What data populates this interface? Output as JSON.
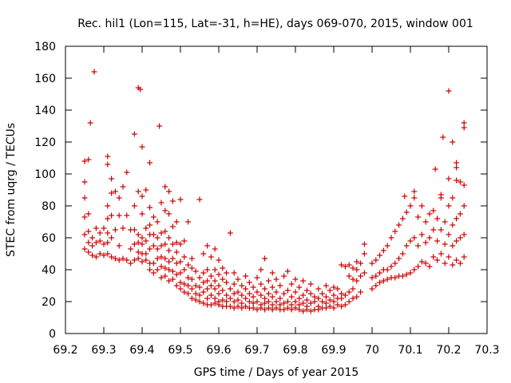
{
  "chart_data": {
    "type": "scatter",
    "title": "Rec. hil1 (Lon=115, Lat=-31, h=HE), days 069-070, 2015, window 001",
    "xlabel": "GPS time / Days of year 2015",
    "ylabel": "STEC from uqrg / TECUs",
    "xlim": [
      69.2,
      70.3
    ],
    "ylim": [
      0,
      180
    ],
    "xticks": [
      "69.2",
      "69.3",
      "69.4",
      "69.5",
      "69.6",
      "69.7",
      "69.8",
      "69.9",
      "70",
      "70.1",
      "70.2",
      "70.3"
    ],
    "yticks": [
      "0",
      "20",
      "40",
      "60",
      "80",
      "100",
      "120",
      "140",
      "160",
      "180"
    ],
    "grid": false,
    "marker": "+",
    "color": "#cc0000",
    "points": [
      [
        69.25,
        53
      ],
      [
        69.25,
        62
      ],
      [
        69.25,
        73
      ],
      [
        69.25,
        85
      ],
      [
        69.25,
        95
      ],
      [
        69.25,
        108
      ],
      [
        69.26,
        51
      ],
      [
        69.26,
        57
      ],
      [
        69.26,
        64
      ],
      [
        69.26,
        75
      ],
      [
        69.26,
        109
      ],
      [
        69.265,
        132
      ],
      [
        69.27,
        49
      ],
      [
        69.27,
        55
      ],
      [
        69.27,
        60
      ],
      [
        69.275,
        164
      ],
      [
        69.28,
        48
      ],
      [
        69.28,
        57
      ],
      [
        69.28,
        66
      ],
      [
        69.29,
        50
      ],
      [
        69.29,
        58
      ],
      [
        69.29,
        63
      ],
      [
        69.3,
        49
      ],
      [
        69.3,
        56
      ],
      [
        69.3,
        66
      ],
      [
        69.31,
        50
      ],
      [
        69.31,
        57
      ],
      [
        69.31,
        63
      ],
      [
        69.31,
        72
      ],
      [
        69.31,
        80
      ],
      [
        69.31,
        106
      ],
      [
        69.31,
        111
      ],
      [
        69.32,
        48
      ],
      [
        69.32,
        60
      ],
      [
        69.32,
        74
      ],
      [
        69.32,
        88
      ],
      [
        69.32,
        97
      ],
      [
        69.33,
        47
      ],
      [
        69.33,
        65
      ],
      [
        69.33,
        89
      ],
      [
        69.34,
        46
      ],
      [
        69.34,
        55
      ],
      [
        69.34,
        74
      ],
      [
        69.34,
        85
      ],
      [
        69.35,
        47
      ],
      [
        69.35,
        66
      ],
      [
        69.35,
        92
      ],
      [
        69.36,
        46
      ],
      [
        69.36,
        74
      ],
      [
        69.36,
        101
      ],
      [
        69.37,
        44
      ],
      [
        69.37,
        53
      ],
      [
        69.37,
        65
      ],
      [
        69.38,
        46
      ],
      [
        69.38,
        56
      ],
      [
        69.38,
        65
      ],
      [
        69.38,
        80
      ],
      [
        69.38,
        125
      ],
      [
        69.39,
        47
      ],
      [
        69.39,
        51
      ],
      [
        69.39,
        57
      ],
      [
        69.39,
        62
      ],
      [
        69.39,
        89
      ],
      [
        69.39,
        154
      ],
      [
        69.395,
        153
      ],
      [
        69.4,
        45
      ],
      [
        69.4,
        50
      ],
      [
        69.4,
        56
      ],
      [
        69.4,
        60
      ],
      [
        69.4,
        75
      ],
      [
        69.4,
        86
      ],
      [
        69.4,
        117
      ],
      [
        69.41,
        46
      ],
      [
        69.41,
        50
      ],
      [
        69.41,
        58
      ],
      [
        69.41,
        66
      ],
      [
        69.41,
        90
      ],
      [
        69.42,
        40
      ],
      [
        69.42,
        44
      ],
      [
        69.42,
        53
      ],
      [
        69.42,
        62
      ],
      [
        69.42,
        68
      ],
      [
        69.42,
        79
      ],
      [
        69.42,
        107
      ],
      [
        69.43,
        38
      ],
      [
        69.43,
        44
      ],
      [
        69.43,
        55
      ],
      [
        69.43,
        62
      ],
      [
        69.43,
        73
      ],
      [
        69.44,
        40
      ],
      [
        69.44,
        47
      ],
      [
        69.44,
        53
      ],
      [
        69.44,
        60
      ],
      [
        69.44,
        70
      ],
      [
        69.445,
        130
      ],
      [
        69.45,
        35
      ],
      [
        69.45,
        42
      ],
      [
        69.45,
        48
      ],
      [
        69.45,
        55
      ],
      [
        69.45,
        63
      ],
      [
        69.45,
        82
      ],
      [
        69.46,
        36
      ],
      [
        69.46,
        41
      ],
      [
        69.46,
        47
      ],
      [
        69.46,
        56
      ],
      [
        69.46,
        64
      ],
      [
        69.46,
        77
      ],
      [
        69.46,
        92
      ],
      [
        69.47,
        33
      ],
      [
        69.47,
        40
      ],
      [
        69.47,
        45
      ],
      [
        69.47,
        52
      ],
      [
        69.47,
        60
      ],
      [
        69.47,
        75
      ],
      [
        69.47,
        89
      ],
      [
        69.48,
        34
      ],
      [
        69.48,
        39
      ],
      [
        69.48,
        47
      ],
      [
        69.48,
        56
      ],
      [
        69.48,
        67
      ],
      [
        69.48,
        83
      ],
      [
        69.49,
        30
      ],
      [
        69.49,
        37
      ],
      [
        69.49,
        44
      ],
      [
        69.49,
        51
      ],
      [
        69.49,
        57
      ],
      [
        69.49,
        70
      ],
      [
        69.5,
        28
      ],
      [
        69.5,
        32
      ],
      [
        69.5,
        38
      ],
      [
        69.5,
        45
      ],
      [
        69.5,
        56
      ],
      [
        69.5,
        84
      ],
      [
        69.51,
        26
      ],
      [
        69.51,
        31
      ],
      [
        69.51,
        40
      ],
      [
        69.51,
        48
      ],
      [
        69.51,
        58
      ],
      [
        69.52,
        25
      ],
      [
        69.52,
        30
      ],
      [
        69.52,
        35
      ],
      [
        69.52,
        43
      ],
      [
        69.52,
        70
      ],
      [
        69.53,
        22
      ],
      [
        69.53,
        28
      ],
      [
        69.53,
        34
      ],
      [
        69.53,
        41
      ],
      [
        69.53,
        47
      ],
      [
        69.54,
        21
      ],
      [
        69.54,
        25
      ],
      [
        69.54,
        30
      ],
      [
        69.54,
        39
      ],
      [
        69.55,
        20
      ],
      [
        69.55,
        24
      ],
      [
        69.55,
        29
      ],
      [
        69.55,
        35
      ],
      [
        69.55,
        84
      ],
      [
        69.56,
        19
      ],
      [
        69.56,
        26
      ],
      [
        69.56,
        32
      ],
      [
        69.56,
        38
      ],
      [
        69.56,
        50
      ],
      [
        69.57,
        18
      ],
      [
        69.57,
        22
      ],
      [
        69.57,
        28
      ],
      [
        69.57,
        33
      ],
      [
        69.57,
        40
      ],
      [
        69.57,
        55
      ],
      [
        69.58,
        18
      ],
      [
        69.58,
        24
      ],
      [
        69.58,
        30
      ],
      [
        69.58,
        36
      ],
      [
        69.58,
        48
      ],
      [
        69.59,
        19
      ],
      [
        69.59,
        22
      ],
      [
        69.59,
        28
      ],
      [
        69.59,
        33
      ],
      [
        69.59,
        40
      ],
      [
        69.59,
        53
      ],
      [
        69.6,
        18
      ],
      [
        69.6,
        20
      ],
      [
        69.6,
        25
      ],
      [
        69.6,
        30
      ],
      [
        69.6,
        37
      ],
      [
        69.6,
        46
      ],
      [
        69.61,
        17
      ],
      [
        69.61,
        21
      ],
      [
        69.61,
        27
      ],
      [
        69.61,
        34
      ],
      [
        69.61,
        41
      ],
      [
        69.62,
        17
      ],
      [
        69.62,
        20
      ],
      [
        69.62,
        24
      ],
      [
        69.62,
        32
      ],
      [
        69.62,
        38
      ],
      [
        69.63,
        17
      ],
      [
        69.63,
        22
      ],
      [
        69.63,
        28
      ],
      [
        69.63,
        63
      ],
      [
        69.64,
        16
      ],
      [
        69.64,
        20
      ],
      [
        69.64,
        25
      ],
      [
        69.64,
        31
      ],
      [
        69.64,
        38
      ],
      [
        69.65,
        17
      ],
      [
        69.65,
        21
      ],
      [
        69.65,
        26
      ],
      [
        69.65,
        34
      ],
      [
        69.66,
        16
      ],
      [
        69.66,
        19
      ],
      [
        69.66,
        24
      ],
      [
        69.66,
        30
      ],
      [
        69.67,
        17
      ],
      [
        69.67,
        22
      ],
      [
        69.67,
        28
      ],
      [
        69.67,
        36
      ],
      [
        69.68,
        16
      ],
      [
        69.68,
        20
      ],
      [
        69.68,
        25
      ],
      [
        69.68,
        32
      ],
      [
        69.69,
        16
      ],
      [
        69.69,
        19
      ],
      [
        69.69,
        23
      ],
      [
        69.69,
        29
      ],
      [
        69.7,
        15
      ],
      [
        69.7,
        20
      ],
      [
        69.7,
        26
      ],
      [
        69.7,
        35
      ],
      [
        69.71,
        16
      ],
      [
        69.71,
        18
      ],
      [
        69.71,
        24
      ],
      [
        69.71,
        31
      ],
      [
        69.71,
        40
      ],
      [
        69.72,
        15
      ],
      [
        69.72,
        19
      ],
      [
        69.72,
        22
      ],
      [
        69.72,
        28
      ],
      [
        69.72,
        47
      ],
      [
        69.73,
        16
      ],
      [
        69.73,
        20
      ],
      [
        69.73,
        25
      ],
      [
        69.73,
        33
      ],
      [
        69.74,
        15
      ],
      [
        69.74,
        18
      ],
      [
        69.74,
        23
      ],
      [
        69.74,
        29
      ],
      [
        69.74,
        38
      ],
      [
        69.75,
        16
      ],
      [
        69.75,
        20
      ],
      [
        69.75,
        26
      ],
      [
        69.75,
        34
      ],
      [
        69.76,
        15
      ],
      [
        69.76,
        18
      ],
      [
        69.76,
        22
      ],
      [
        69.76,
        30
      ],
      [
        69.77,
        15
      ],
      [
        69.77,
        19
      ],
      [
        69.77,
        25
      ],
      [
        69.77,
        36
      ],
      [
        69.78,
        16
      ],
      [
        69.78,
        20
      ],
      [
        69.78,
        27
      ],
      [
        69.78,
        39
      ],
      [
        69.79,
        15
      ],
      [
        69.79,
        18
      ],
      [
        69.79,
        23
      ],
      [
        69.79,
        31
      ],
      [
        69.8,
        16
      ],
      [
        69.8,
        20
      ],
      [
        69.8,
        26
      ],
      [
        69.8,
        34
      ],
      [
        69.81,
        15
      ],
      [
        69.81,
        18
      ],
      [
        69.81,
        22
      ],
      [
        69.81,
        29
      ],
      [
        69.82,
        14
      ],
      [
        69.82,
        19
      ],
      [
        69.82,
        24
      ],
      [
        69.82,
        33
      ],
      [
        69.83,
        15
      ],
      [
        69.83,
        17
      ],
      [
        69.83,
        21
      ],
      [
        69.83,
        27
      ],
      [
        69.84,
        14
      ],
      [
        69.84,
        19
      ],
      [
        69.84,
        25
      ],
      [
        69.84,
        31
      ],
      [
        69.85,
        15
      ],
      [
        69.85,
        20
      ],
      [
        69.85,
        23
      ],
      [
        69.86,
        15
      ],
      [
        69.86,
        17
      ],
      [
        69.86,
        22
      ],
      [
        69.86,
        28
      ],
      [
        69.87,
        16
      ],
      [
        69.87,
        20
      ],
      [
        69.87,
        25
      ],
      [
        69.88,
        16
      ],
      [
        69.88,
        19
      ],
      [
        69.88,
        23
      ],
      [
        69.88,
        30
      ],
      [
        69.89,
        17
      ],
      [
        69.89,
        21
      ],
      [
        69.89,
        27
      ],
      [
        69.9,
        16
      ],
      [
        69.9,
        20
      ],
      [
        69.9,
        24
      ],
      [
        69.9,
        29
      ],
      [
        69.91,
        18
      ],
      [
        69.91,
        22
      ],
      [
        69.91,
        28
      ],
      [
        69.92,
        17
      ],
      [
        69.92,
        22
      ],
      [
        69.92,
        25
      ],
      [
        69.92,
        43
      ],
      [
        69.93,
        18
      ],
      [
        69.93,
        24
      ],
      [
        69.93,
        42
      ],
      [
        69.94,
        20
      ],
      [
        69.94,
        26
      ],
      [
        69.94,
        36
      ],
      [
        69.94,
        43
      ],
      [
        69.95,
        22
      ],
      [
        69.95,
        28
      ],
      [
        69.95,
        34
      ],
      [
        69.95,
        41
      ],
      [
        69.96,
        23
      ],
      [
        69.96,
        33
      ],
      [
        69.96,
        40
      ],
      [
        69.96,
        45
      ],
      [
        69.97,
        26
      ],
      [
        69.97,
        36
      ],
      [
        69.97,
        44
      ],
      [
        69.98,
        38
      ],
      [
        69.98,
        50
      ],
      [
        69.98,
        56
      ],
      [
        70,
        28
      ],
      [
        70,
        35
      ],
      [
        70,
        44
      ],
      [
        70.01,
        30
      ],
      [
        70.01,
        36
      ],
      [
        70.01,
        46
      ],
      [
        70.02,
        32
      ],
      [
        70.02,
        38
      ],
      [
        70.02,
        49
      ],
      [
        70.03,
        33
      ],
      [
        70.03,
        40
      ],
      [
        70.03,
        52
      ],
      [
        70.04,
        34
      ],
      [
        70.04,
        40
      ],
      [
        70.04,
        55
      ],
      [
        70.05,
        35
      ],
      [
        70.05,
        42
      ],
      [
        70.05,
        60
      ],
      [
        70.06,
        35
      ],
      [
        70.06,
        44
      ],
      [
        70.06,
        64
      ],
      [
        70.07,
        36
      ],
      [
        70.07,
        47
      ],
      [
        70.07,
        68
      ],
      [
        70.08,
        36
      ],
      [
        70.08,
        50
      ],
      [
        70.08,
        72
      ],
      [
        70.085,
        86
      ],
      [
        70.09,
        37
      ],
      [
        70.09,
        55
      ],
      [
        70.09,
        76
      ],
      [
        70.1,
        38
      ],
      [
        70.1,
        58
      ],
      [
        70.1,
        80
      ],
      [
        70.11,
        40
      ],
      [
        70.11,
        60
      ],
      [
        70.11,
        85
      ],
      [
        70.11,
        89
      ],
      [
        70.12,
        42
      ],
      [
        70.12,
        55
      ],
      [
        70.12,
        73
      ],
      [
        70.13,
        45
      ],
      [
        70.13,
        62
      ],
      [
        70.13,
        80
      ],
      [
        70.14,
        44
      ],
      [
        70.14,
        57
      ],
      [
        70.14,
        70
      ],
      [
        70.15,
        42
      ],
      [
        70.15,
        60
      ],
      [
        70.15,
        75
      ],
      [
        70.16,
        48
      ],
      [
        70.16,
        65
      ],
      [
        70.16,
        77
      ],
      [
        70.165,
        103
      ],
      [
        70.17,
        46
      ],
      [
        70.17,
        58
      ],
      [
        70.17,
        72
      ],
      [
        70.18,
        50
      ],
      [
        70.18,
        65
      ],
      [
        70.18,
        85
      ],
      [
        70.18,
        87
      ],
      [
        70.185,
        123
      ],
      [
        70.19,
        44
      ],
      [
        70.19,
        56
      ],
      [
        70.19,
        70
      ],
      [
        70.2,
        48
      ],
      [
        70.2,
        62
      ],
      [
        70.2,
        80
      ],
      [
        70.2,
        97
      ],
      [
        70.2,
        152
      ],
      [
        70.21,
        43
      ],
      [
        70.21,
        55
      ],
      [
        70.21,
        68
      ],
      [
        70.21,
        85
      ],
      [
        70.21,
        120
      ],
      [
        70.22,
        46
      ],
      [
        70.22,
        58
      ],
      [
        70.22,
        72
      ],
      [
        70.22,
        96
      ],
      [
        70.22,
        104
      ],
      [
        70.22,
        107
      ],
      [
        70.23,
        44
      ],
      [
        70.23,
        60
      ],
      [
        70.23,
        75
      ],
      [
        70.23,
        95
      ],
      [
        70.24,
        48
      ],
      [
        70.24,
        62
      ],
      [
        70.24,
        80
      ],
      [
        70.24,
        93
      ],
      [
        70.24,
        129
      ],
      [
        70.24,
        132
      ]
    ]
  }
}
